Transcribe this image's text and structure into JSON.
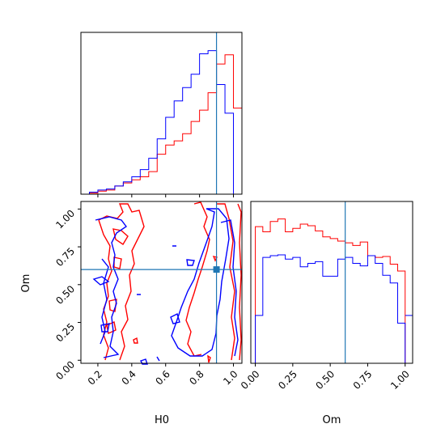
{
  "chart_data": {
    "type": "corner",
    "parameters": [
      "H0",
      "Om"
    ],
    "truths": {
      "H0": 0.9,
      "Om": 0.6
    },
    "colors": {
      "series_a": "#ff0000",
      "series_b": "#0000ff",
      "truth": "#1f77b4",
      "axes": "#000000"
    },
    "xlabel": "H0",
    "ylabel": "Om",
    "xlabel_om": "Om",
    "panels": {
      "h0_hist": {
        "type": "step-histogram",
        "xlim": [
          0.1,
          1.05
        ],
        "bins": [
          0.1,
          0.15,
          0.2,
          0.25,
          0.3,
          0.35,
          0.4,
          0.45,
          0.5,
          0.55,
          0.6,
          0.65,
          0.7,
          0.75,
          0.8,
          0.85,
          0.9,
          0.95,
          1.0,
          1.05
        ],
        "series": [
          {
            "color": "red",
            "counts": [
              0,
              1,
              3,
              4,
              8,
              11,
              14,
              17,
              22,
              39,
              48,
              52,
              59,
              71,
              82,
              99,
              127,
              136,
              84
            ]
          },
          {
            "color": "blue",
            "counts": [
              0,
              2,
              4,
              5,
              8,
              12,
              17,
              24,
              35,
              54,
              75,
              91,
              104,
              117,
              137,
              140,
              107,
              79,
              0
            ]
          }
        ],
        "xticks": [
          0.2,
          0.4,
          0.6,
          0.8,
          1.0
        ]
      },
      "om_hist": {
        "type": "step-histogram",
        "xlim": [
          -0.03,
          1.05
        ],
        "bins": [
          0.0,
          0.05,
          0.1,
          0.15,
          0.2,
          0.25,
          0.3,
          0.35,
          0.4,
          0.45,
          0.5,
          0.55,
          0.6,
          0.65,
          0.7,
          0.75,
          0.8,
          0.85,
          0.9,
          0.95,
          1.0
        ],
        "series": [
          {
            "color": "red",
            "counts": [
              160,
              154,
              166,
              169,
              154,
              158,
              163,
              161,
              155,
              148,
              146,
              143,
              141,
              138,
              142,
              126,
              124,
              125,
              116,
              108
            ]
          },
          {
            "color": "blue",
            "counts": [
              56,
              124,
              126,
              127,
              122,
              124,
              113,
              117,
              119,
              102,
              102,
              122,
              124,
              117,
              114,
              126,
              117,
              103,
              94,
              47
            ]
          },
          {
            "color": "blue-tail",
            "counts": [
              56
            ]
          }
        ],
        "xticks": [
          "0.00",
          "0.25",
          "0.50",
          "0.75",
          "1.00"
        ]
      },
      "joint": {
        "type": "contour",
        "xlim": [
          0.1,
          1.05
        ],
        "ylim": [
          -0.02,
          1.05
        ],
        "xticks": [
          "0.2",
          "0.4",
          "0.6",
          "0.8",
          "1.0"
        ],
        "yticks": [
          "0.00",
          "0.25",
          "0.50",
          "0.75",
          "1.00"
        ]
      }
    }
  }
}
